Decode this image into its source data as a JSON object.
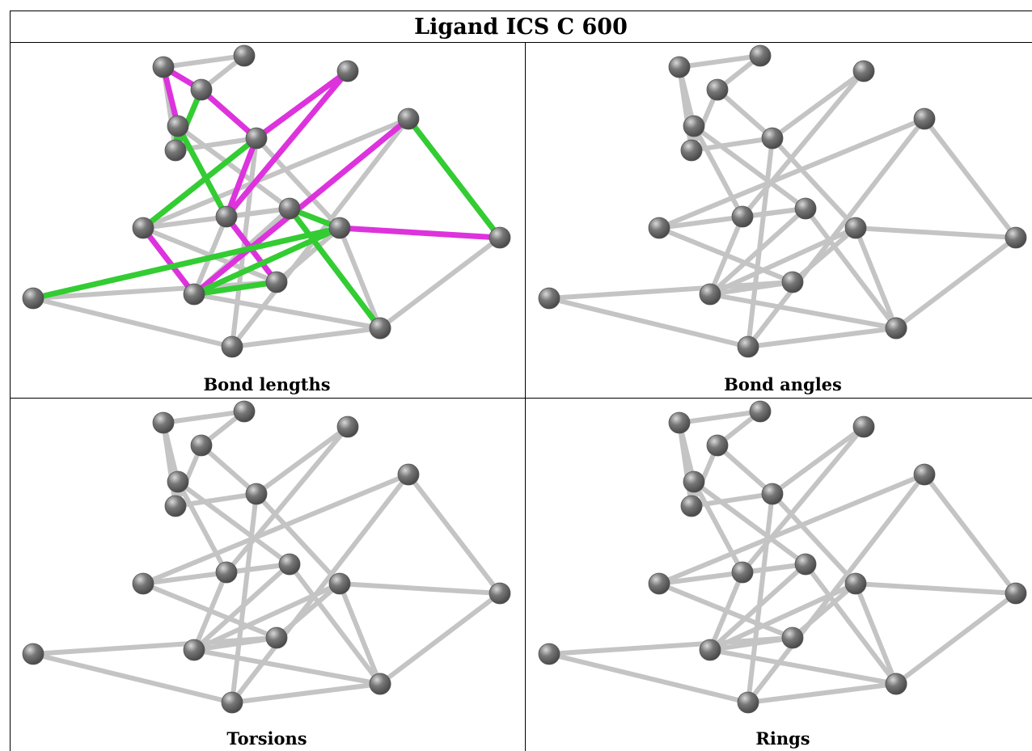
{
  "title": "Ligand ICS C 600",
  "panels": [
    {
      "caption": "Bond lengths"
    },
    {
      "caption": "Bond angles"
    },
    {
      "caption": "Torsions"
    },
    {
      "caption": "Rings"
    }
  ],
  "colors": {
    "bond_default": "#c4c4c4",
    "atom": "#777777",
    "highlight_green": "#33cc33",
    "highlight_magenta": "#dd33dd"
  },
  "molecule": {
    "atoms": [
      "A",
      "B",
      "C",
      "D",
      "E",
      "F",
      "G",
      "H",
      "I",
      "J",
      "K",
      "L",
      "M",
      "N",
      "O",
      "P",
      "Q",
      "R",
      "S"
    ],
    "bonds": [
      [
        "A",
        "B"
      ],
      [
        "A",
        "E"
      ],
      [
        "A",
        "C"
      ],
      [
        "B",
        "D"
      ],
      [
        "C",
        "D"
      ],
      [
        "C",
        "F"
      ],
      [
        "C",
        "E"
      ],
      [
        "D",
        "F"
      ],
      [
        "F",
        "G"
      ],
      [
        "E",
        "H"
      ],
      [
        "E",
        "K"
      ],
      [
        "G",
        "H"
      ],
      [
        "H",
        "K"
      ],
      [
        "J",
        "K"
      ],
      [
        "K",
        "R"
      ],
      [
        "K",
        "L"
      ],
      [
        "L",
        "R"
      ],
      [
        "L",
        "O"
      ],
      [
        "L",
        "M"
      ],
      [
        "R",
        "S"
      ],
      [
        "M",
        "O"
      ],
      [
        "F",
        "M"
      ],
      [
        "F",
        "Q"
      ],
      [
        "I",
        "N"
      ],
      [
        "I",
        "J"
      ],
      [
        "N",
        "S"
      ],
      [
        "I",
        "Q"
      ],
      [
        "J",
        "O"
      ],
      [
        "O",
        "P"
      ],
      [
        "P",
        "Q"
      ],
      [
        "M",
        "S"
      ],
      [
        "H",
        "L"
      ],
      [
        "Q",
        "R"
      ],
      [
        "M",
        "N"
      ]
    ],
    "highlights": [
      {
        "panel": 0,
        "bond": [
          "A",
          "D"
        ],
        "color": "magenta"
      },
      {
        "panel": 0,
        "bond": [
          "A",
          "E"
        ],
        "color": "magenta"
      },
      {
        "panel": 0,
        "bond": [
          "D",
          "F"
        ],
        "color": "magenta"
      },
      {
        "panel": 0,
        "bond": [
          "F",
          "G"
        ],
        "color": "magenta"
      },
      {
        "panel": 0,
        "bond": [
          "G",
          "H"
        ],
        "color": "magenta"
      },
      {
        "panel": 0,
        "bond": [
          "F",
          "H"
        ],
        "color": "magenta"
      },
      {
        "panel": 0,
        "bond": [
          "H",
          "O"
        ],
        "color": "magenta"
      },
      {
        "panel": 0,
        "bond": [
          "I",
          "L"
        ],
        "color": "magenta"
      },
      {
        "panel": 0,
        "bond": [
          "J",
          "L"
        ],
        "color": "magenta"
      },
      {
        "panel": 0,
        "bond": [
          "M",
          "N"
        ],
        "color": "magenta"
      },
      {
        "panel": 0,
        "bond": [
          "C",
          "D"
        ],
        "color": "green"
      },
      {
        "panel": 0,
        "bond": [
          "C",
          "E"
        ],
        "color": "green"
      },
      {
        "panel": 0,
        "bond": [
          "E",
          "H"
        ],
        "color": "green"
      },
      {
        "panel": 0,
        "bond": [
          "F",
          "J"
        ],
        "color": "green"
      },
      {
        "panel": 0,
        "bond": [
          "I",
          "N"
        ],
        "color": "green"
      },
      {
        "panel": 0,
        "bond": [
          "K",
          "S"
        ],
        "color": "green"
      },
      {
        "panel": 0,
        "bond": [
          "K",
          "M"
        ],
        "color": "green"
      },
      {
        "panel": 0,
        "bond": [
          "L",
          "O"
        ],
        "color": "green"
      },
      {
        "panel": 0,
        "bond": [
          "M",
          "L"
        ],
        "color": "green"
      },
      {
        "panel": 0,
        "bond": [
          "M",
          "P"
        ],
        "color": "green"
      }
    ]
  }
}
